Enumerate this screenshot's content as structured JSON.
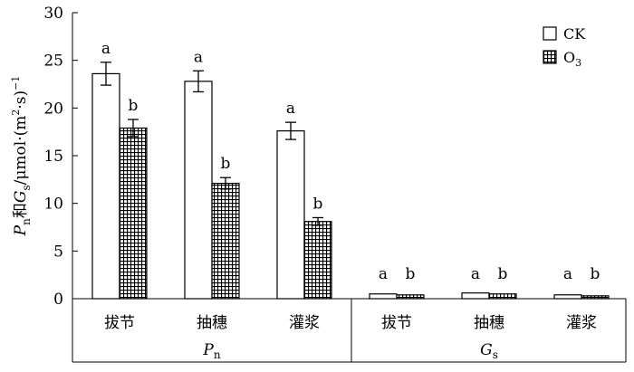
{
  "chart_data": {
    "type": "bar",
    "ylim": [
      0,
      30
    ],
    "y_ticks": [
      "0",
      "5",
      "10",
      "15",
      "20",
      "25",
      "30"
    ],
    "ylabel": {
      "p": "P",
      "p_sub": "n",
      "and": "和",
      "g": "G",
      "g_sub": "s",
      "unit_a": "/μmol·(m",
      "unit_sup": "2",
      "unit_b": "·s)",
      "unit_sup2": "−1"
    },
    "groups": [
      {
        "label_main": "P",
        "label_sub": "n",
        "categories": [
          "拔节",
          "抽穗",
          "灌浆"
        ]
      },
      {
        "label_main": "G",
        "label_sub": "s",
        "categories": [
          "拔节",
          "抽穗",
          "灌浆"
        ]
      }
    ],
    "series": [
      {
        "name": "CK",
        "pattern": "open",
        "values": [
          23.6,
          22.8,
          17.6,
          0.5,
          0.6,
          0.4
        ],
        "errors": [
          1.2,
          1.1,
          0.9,
          0,
          0,
          0
        ],
        "letters": [
          "a",
          "a",
          "a",
          "a",
          "a",
          "a"
        ]
      },
      {
        "name": "O",
        "name_sub": "3",
        "pattern": "grid",
        "values": [
          17.9,
          12.1,
          8.1,
          0.4,
          0.5,
          0.3
        ],
        "errors": [
          0.9,
          0.6,
          0.4,
          0,
          0,
          0
        ],
        "letters": [
          "b",
          "b",
          "b",
          "b",
          "b",
          "b"
        ]
      }
    ],
    "legend_position": "top-right",
    "grid": false
  }
}
